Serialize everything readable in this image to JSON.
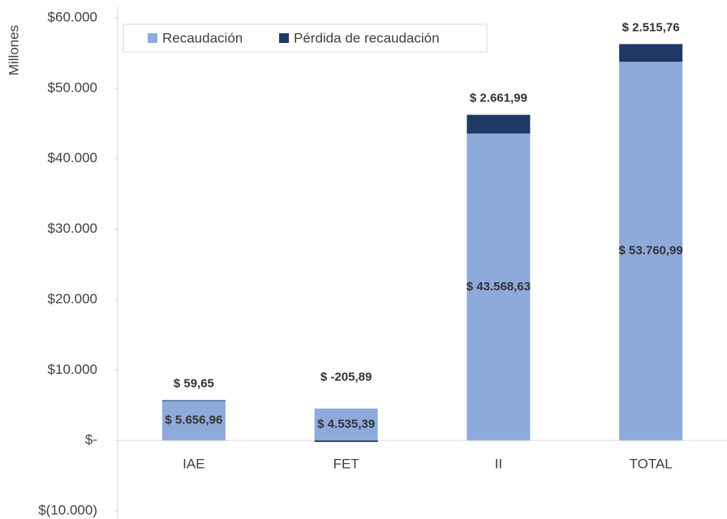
{
  "chart_data": {
    "type": "bar",
    "stacked": true,
    "y_label": "Millones",
    "categories": [
      "IAE",
      "FET",
      "II",
      "TOTAL"
    ],
    "series": [
      {
        "name": "Recaudación",
        "color": "#8eaadb",
        "values": [
          5656.96,
          4535.39,
          43568.63,
          53760.99
        ],
        "value_labels": [
          "$ 5.656,96",
          "$ 4.535,39",
          "$ 43.568,63",
          "$ 53.760,99"
        ]
      },
      {
        "name": "Pérdida de recaudación",
        "color": "#203864",
        "values": [
          59.65,
          -205.89,
          2661.99,
          2515.76
        ],
        "value_labels": [
          "$ 59,65",
          "$ -205,89",
          "$ 2.661,99",
          "$ 2.515,76"
        ]
      }
    ],
    "ylim": [
      -10000,
      60000
    ],
    "yticks": [
      {
        "value": -10000,
        "label": "$(10.000)"
      },
      {
        "value": 0,
        "label": "$-"
      },
      {
        "value": 10000,
        "label": "$10.000"
      },
      {
        "value": 20000,
        "label": "$20.000"
      },
      {
        "value": 30000,
        "label": "$30.000"
      },
      {
        "value": 40000,
        "label": "$40.000"
      },
      {
        "value": 50000,
        "label": "$50.000"
      },
      {
        "value": 60000,
        "label": "$60.000"
      }
    ]
  }
}
